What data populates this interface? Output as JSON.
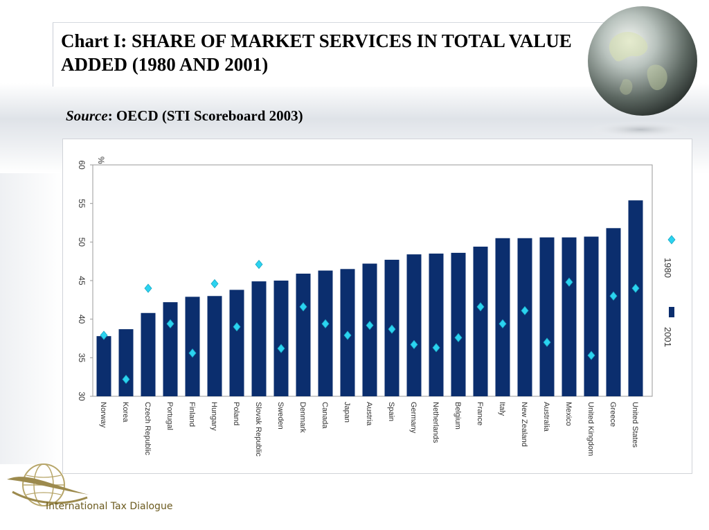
{
  "slide": {
    "title": "Chart I: SHARE OF MARKET SERVICES IN TOTAL VALUE ADDED (1980 AND 2001)",
    "source_label": "Source",
    "source_text": ": OECD (STI Scoreboard 2003)",
    "footer": "International Tax Dialogue"
  },
  "colors": {
    "bar_2001": "#0b2e6e",
    "marker_1980": "#2bd3f0"
  },
  "chart_data": {
    "type": "bar",
    "ylabel": "%",
    "ylim": [
      30,
      60
    ],
    "yticks": [
      30,
      35,
      40,
      45,
      50,
      55,
      60
    ],
    "grid": false,
    "legend_position": "right",
    "categories": [
      "Norway",
      "Korea",
      "Czech Republic",
      "Portugal",
      "Finland",
      "Hungary",
      "Poland",
      "Slovak Republic",
      "Sweden",
      "Denmark",
      "Canada",
      "Japan",
      "Austria",
      "Spain",
      "Germany",
      "Netherlands",
      "Belgium",
      "France",
      "Italy",
      "New Zealand",
      "Australia",
      "Mexico",
      "United Kingdom",
      "Greece",
      "United States"
    ],
    "series": [
      {
        "name": "2001",
        "kind": "bar",
        "values": [
          37.8,
          38.7,
          40.8,
          42.2,
          42.9,
          43.0,
          43.8,
          44.9,
          45.0,
          45.9,
          46.3,
          46.5,
          47.2,
          47.7,
          48.4,
          48.5,
          48.6,
          49.4,
          50.5,
          50.5,
          50.6,
          50.6,
          50.7,
          51.8,
          55.4
        ]
      },
      {
        "name": "1980",
        "kind": "marker",
        "values": [
          37.9,
          32.2,
          44.0,
          39.4,
          35.6,
          44.6,
          39.0,
          47.1,
          36.2,
          41.6,
          39.4,
          37.9,
          39.2,
          38.7,
          36.7,
          36.3,
          37.6,
          41.6,
          39.4,
          41.1,
          37.0,
          44.8,
          35.3,
          43.0,
          44.0
        ]
      }
    ]
  }
}
